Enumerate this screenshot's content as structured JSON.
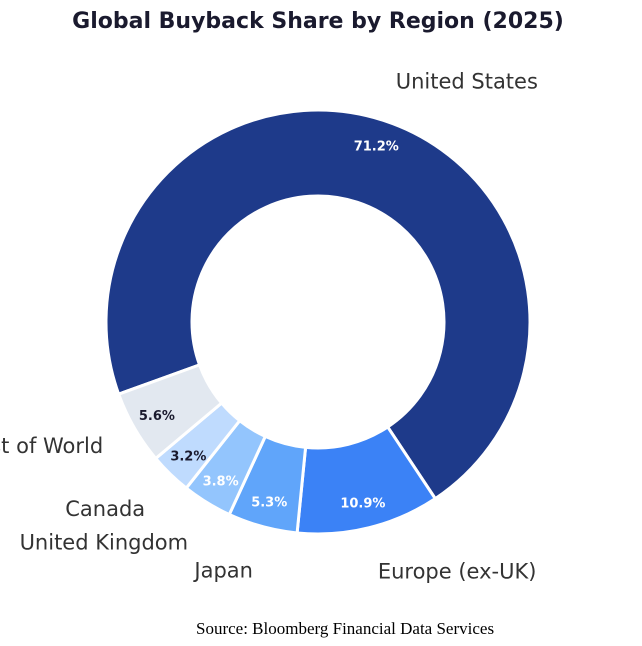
{
  "chart_data": {
    "type": "pie",
    "donut": true,
    "title": "Global Buyback Share by Region (2025)",
    "categories": [
      "United States",
      "Europe (ex-UK)",
      "Japan",
      "United Kingdom",
      "Canada",
      "Rest of World"
    ],
    "values": [
      71.2,
      10.9,
      5.3,
      3.8,
      3.2,
      5.6
    ],
    "value_labels": [
      "71.2%",
      "10.9%",
      "5.3%",
      "3.8%",
      "3.2%",
      "5.6%"
    ],
    "colors": [
      "#1e3a8a",
      "#3b82f6",
      "#60a5fa",
      "#93c5fd",
      "#bfdbfe",
      "#e2e8f0"
    ],
    "value_label_colors": [
      "#ffffff",
      "#ffffff",
      "#ffffff",
      "#ffffff",
      "#1a1a2e",
      "#1a1a2e"
    ]
  },
  "footer": {
    "source": "Source: Bloomberg Financial Data Services"
  }
}
